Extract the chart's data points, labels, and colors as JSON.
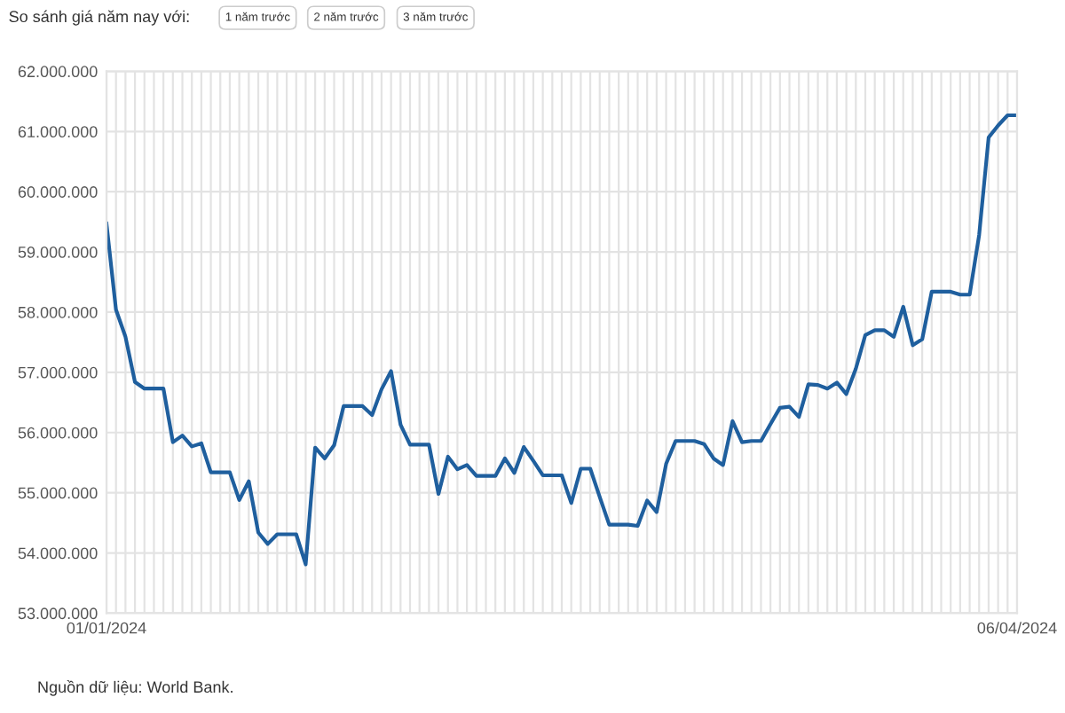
{
  "chart_data": {
    "type": "line",
    "annotations": [
      "So sánh giá năm nay với:",
      "1 năm trước",
      "2 năm trước",
      "3 năm trước",
      "Nguồn dữ liệu: World Bank."
    ],
    "categories": [
      "01/01/2024",
      null,
      null,
      null,
      null,
      null,
      null,
      null,
      null,
      null,
      null,
      null,
      null,
      null,
      null,
      null,
      null,
      null,
      null,
      null,
      null,
      null,
      null,
      null,
      null,
      null,
      null,
      null,
      null,
      null,
      null,
      null,
      null,
      null,
      null,
      null,
      null,
      null,
      null,
      null,
      null,
      null,
      null,
      null,
      null,
      null,
      null,
      null,
      null,
      null,
      null,
      null,
      null,
      null,
      null,
      null,
      null,
      null,
      null,
      null,
      null,
      null,
      null,
      null,
      null,
      null,
      null,
      null,
      null,
      null,
      null,
      null,
      null,
      null,
      null,
      null,
      null,
      null,
      null,
      null,
      null,
      null,
      null,
      null,
      null,
      null,
      null,
      null,
      null,
      null,
      null,
      null,
      null,
      null,
      null,
      null,
      "06/04/2024"
    ],
    "series": [
      {
        "color": "#1f5f9e",
        "values": [
          59470000,
          58040000,
          57590000,
          56840000,
          56730000,
          56730000,
          56730000,
          55840000,
          55950000,
          55770000,
          55820000,
          55340000,
          55340000,
          55340000,
          54880000,
          55190000,
          54340000,
          54150000,
          54310000,
          54310000,
          54310000,
          53810000,
          55750000,
          55570000,
          55790000,
          56440000,
          56440000,
          56440000,
          56290000,
          56720000,
          57020000,
          56130000,
          55800000,
          55800000,
          55800000,
          54980000,
          55600000,
          55390000,
          55460000,
          55280000,
          55280000,
          55280000,
          55570000,
          55330000,
          55760000,
          55530000,
          55290000,
          55290000,
          55290000,
          54830000,
          55400000,
          55400000,
          54930000,
          54470000,
          54470000,
          54470000,
          54450000,
          54870000,
          54680000,
          55480000,
          55860000,
          55860000,
          55860000,
          55810000,
          55570000,
          55460000,
          56190000,
          55840000,
          55860000,
          55860000,
          56140000,
          56410000,
          56430000,
          56260000,
          56800000,
          56790000,
          56730000,
          56830000,
          56640000,
          57060000,
          57620000,
          57700000,
          57700000,
          57590000,
          58090000,
          57450000,
          57550000,
          58340000,
          58340000,
          58340000,
          58290000,
          58290000,
          59280000,
          60900000,
          61100000,
          61270000,
          61270000
        ]
      }
    ],
    "ylim": [
      53000000,
      62000000
    ],
    "yticks": [
      {
        "value": 53000000,
        "label": "53.000.000"
      },
      {
        "value": 54000000,
        "label": "54.000.000"
      },
      {
        "value": 55000000,
        "label": "55.000.000"
      },
      {
        "value": 56000000,
        "label": "56.000.000"
      },
      {
        "value": 57000000,
        "label": "57.000.000"
      },
      {
        "value": 58000000,
        "label": "58.000.000"
      },
      {
        "value": 59000000,
        "label": "59.000.000"
      },
      {
        "value": 60000000,
        "label": "60.000.000"
      },
      {
        "value": 61000000,
        "label": "61.000.000"
      },
      {
        "value": 62000000,
        "label": "62.000.000"
      }
    ],
    "grid": true,
    "marker": "none",
    "line_style": "solid"
  }
}
